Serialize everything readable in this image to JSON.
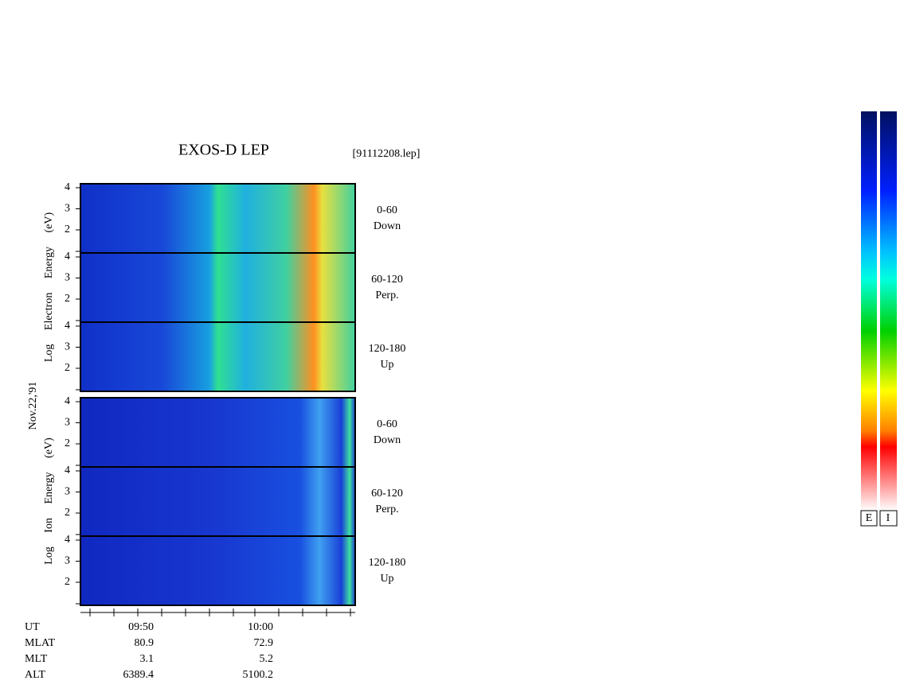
{
  "header": {
    "title": "EXOS-D LEP",
    "file": "[91112208.lep]",
    "date": "Nov.22,'91"
  },
  "groups": [
    {
      "axis_label": "Log Electron Energy (eV)",
      "panels": [
        {
          "angle": "0-60",
          "direction": "Down"
        },
        {
          "angle": "60-120",
          "direction": "Perp."
        },
        {
          "angle": "120-180",
          "direction": "Up"
        }
      ]
    },
    {
      "axis_label": "Log Ion Energy (eV)",
      "panels": [
        {
          "angle": "0-60",
          "direction": "Down"
        },
        {
          "angle": "60-120",
          "direction": "Perp."
        },
        {
          "angle": "120-180",
          "direction": "Up"
        }
      ]
    }
  ],
  "energy_ticks": [
    4,
    3,
    2
  ],
  "orbit": [
    {
      "label": "UT",
      "values": [
        "09:50",
        "10:00"
      ]
    },
    {
      "label": "MLAT",
      "values": [
        80.9,
        72.9
      ]
    },
    {
      "label": "MLT",
      "values": [
        3.1,
        5.2
      ]
    },
    {
      "label": "ALT",
      "values": [
        6389.4,
        5100.2
      ]
    }
  ],
  "colorbars": [
    "E",
    "I"
  ]
}
